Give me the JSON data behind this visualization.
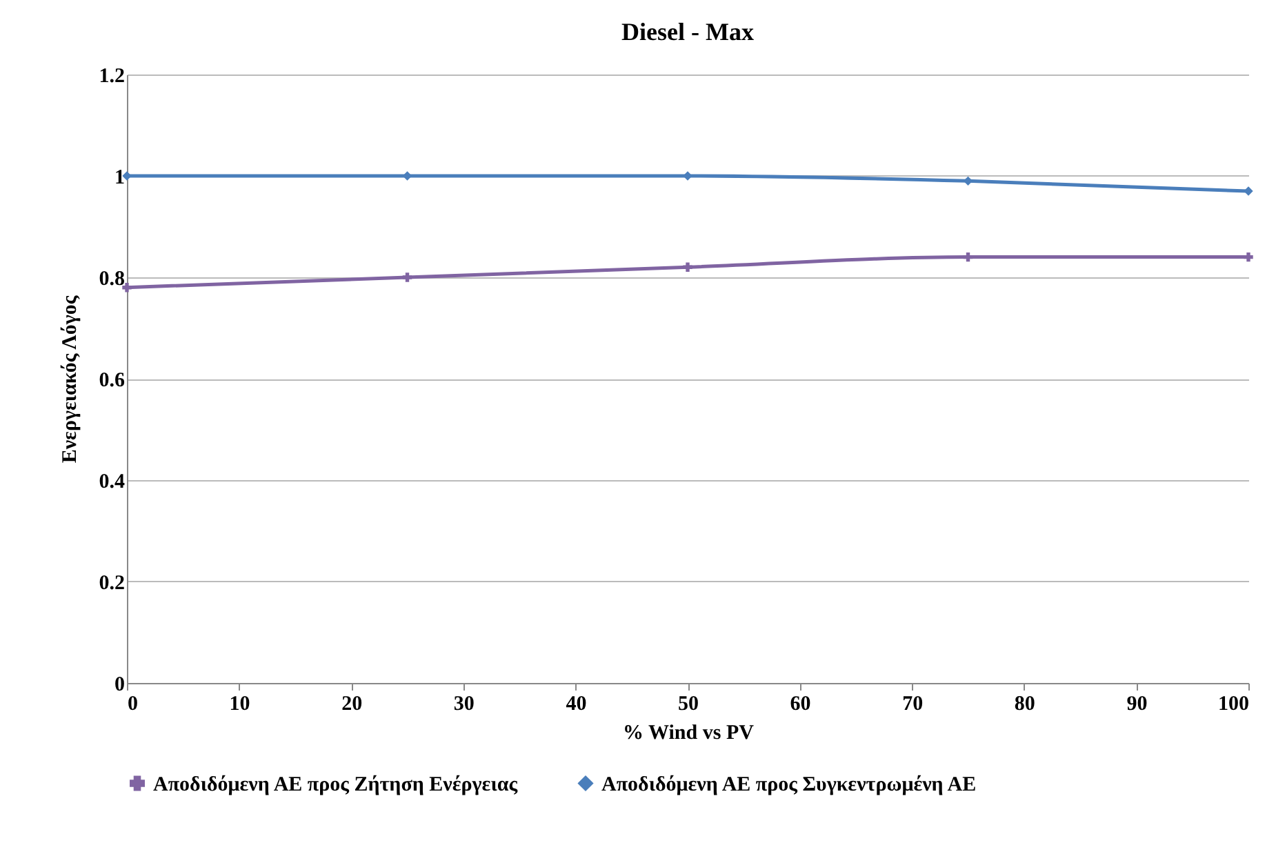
{
  "chart_data": {
    "type": "line",
    "title": "Diesel - Max",
    "xlabel": "% Wind vs PV",
    "ylabel": "Ενεργειακός Λόγος",
    "x": [
      0,
      25,
      50,
      75,
      100
    ],
    "series": [
      {
        "name": "Αποδιδόμενη ΑΕ προς Ζήτηση Ενέργειας",
        "color": "#8064a2",
        "marker": "cross",
        "values": [
          0.78,
          0.8,
          0.82,
          0.84,
          0.84
        ]
      },
      {
        "name": "Αποδιδόμενη ΑΕ προς Συγκεντρωμένη ΑΕ",
        "color": "#4a7ebb",
        "marker": "diamond",
        "values": [
          1.0,
          1.0,
          1.0,
          0.99,
          0.97
        ]
      }
    ],
    "xlim": [
      0,
      100
    ],
    "xticks": [
      0,
      10,
      20,
      30,
      40,
      50,
      60,
      70,
      80,
      90,
      100
    ],
    "ylim": [
      0,
      1.2
    ],
    "yticks": [
      0,
      0.2,
      0.4,
      0.6,
      0.8,
      1,
      1.2
    ],
    "grid": "y",
    "legend": "bottom",
    "line_style": "solid"
  }
}
